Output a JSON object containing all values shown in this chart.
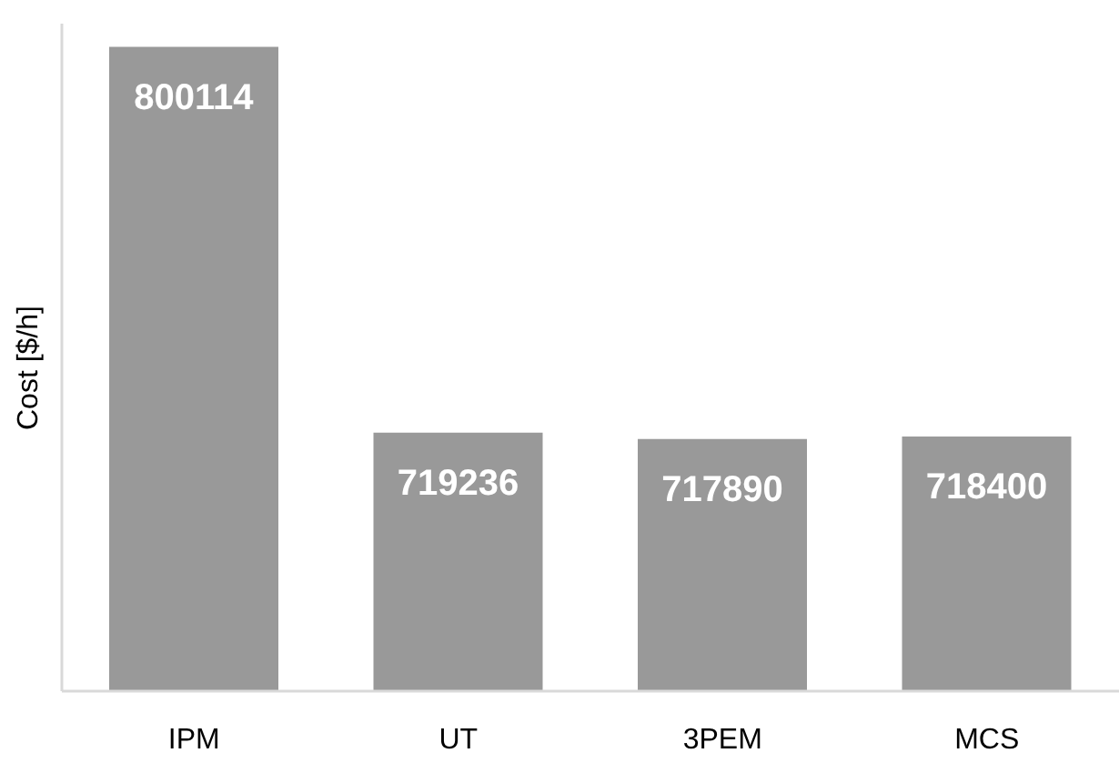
{
  "chart_data": {
    "type": "bar",
    "ylabel": "Cost [$/h]",
    "categories": [
      "IPM",
      "UT",
      "3PEM",
      "MCS"
    ],
    "values": [
      800114,
      719236,
      717890,
      718400
    ],
    "color": "#999999",
    "ylim": [
      665000,
      805000
    ],
    "data_labels": true,
    "tick_labels": "x"
  }
}
